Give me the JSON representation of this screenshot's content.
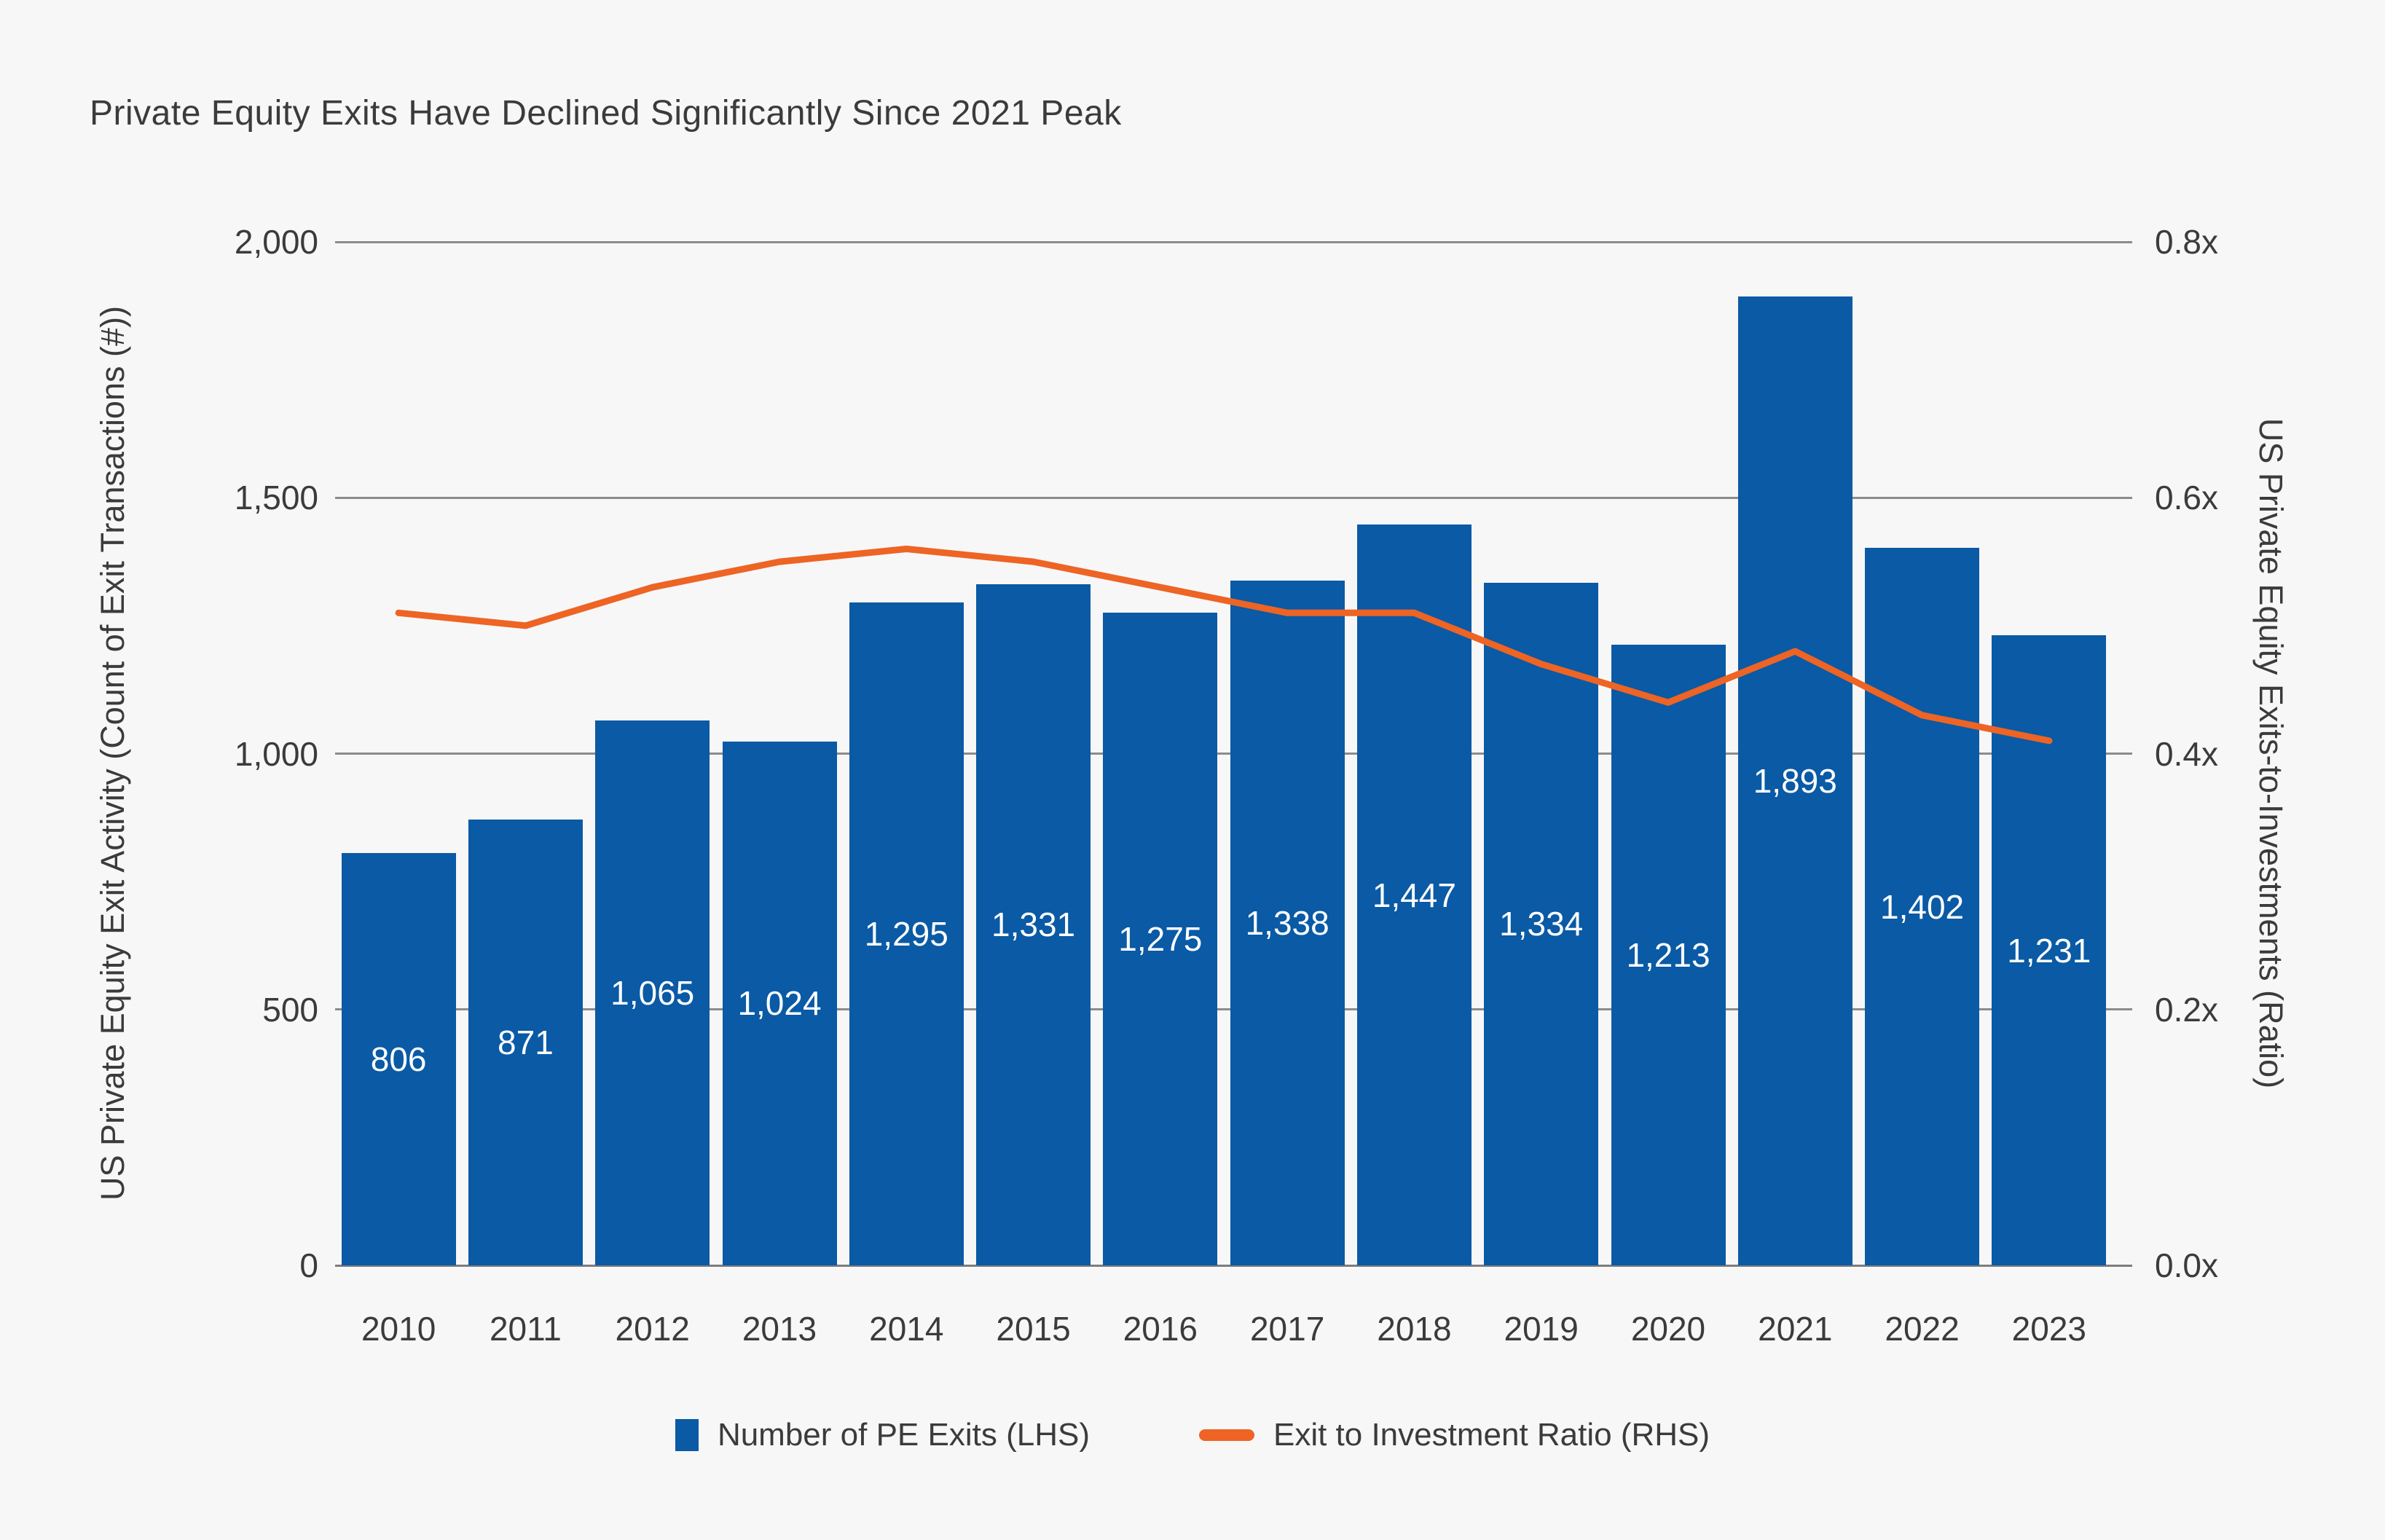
{
  "title": "Private Equity Exits Have Declined Significantly Since 2021 Peak",
  "chart_data": {
    "type": "bar",
    "subtype": "bar-line-combo",
    "categories": [
      "2010",
      "2011",
      "2012",
      "2013",
      "2014",
      "2015",
      "2016",
      "2017",
      "2018",
      "2019",
      "2020",
      "2021",
      "2022",
      "2023"
    ],
    "series": [
      {
        "name": "Number of PE Exits (LHS)",
        "type": "bar",
        "axis": "left",
        "color": "#0a5aa5",
        "values": [
          806,
          871,
          1065,
          1024,
          1295,
          1331,
          1275,
          1338,
          1447,
          1334,
          1213,
          1893,
          1402,
          1231
        ],
        "value_labels": [
          "806",
          "871",
          "1,065",
          "1,024",
          "1,295",
          "1,331",
          "1,275",
          "1,338",
          "1,447",
          "1,334",
          "1,213",
          "1,893",
          "1,402",
          "1,231"
        ]
      },
      {
        "name": "Exit to Investment Ratio (RHS)",
        "type": "line",
        "axis": "right",
        "color": "#ed6425",
        "values": [
          0.51,
          0.5,
          0.53,
          0.55,
          0.56,
          0.55,
          0.53,
          0.51,
          0.51,
          0.47,
          0.44,
          0.48,
          0.43,
          0.41
        ]
      }
    ],
    "title": "Private Equity Exits Have Declined Significantly Since 2021 Peak",
    "xlabel": "",
    "left_axis": {
      "label": "US Private Equity Exit Activity (Count of Exit Transactions (#))",
      "ticks": [
        "2,000",
        "1,500",
        "1,000",
        "500",
        "0"
      ],
      "min": 0,
      "max": 2000
    },
    "right_axis": {
      "label": "US Private Equity Exits-to-Investments (Ratio)",
      "ticks": [
        "0.8x",
        "0.6x",
        "0.4x",
        "0.2x",
        "0.0x"
      ],
      "min": 0,
      "max": 0.8
    },
    "grid": true,
    "legend_position": "bottom"
  },
  "legend": {
    "items": [
      {
        "label": "Number of PE Exits (LHS)",
        "swatch": "square",
        "color": "#0a5aa5"
      },
      {
        "label": "Exit to Investment Ratio (RHS)",
        "swatch": "line",
        "color": "#ed6425"
      }
    ]
  },
  "colors": {
    "background": "#f7f7f7",
    "bar": "#0a5aa5",
    "line": "#ed6425",
    "gridline": "#8c8c8c",
    "text": "#3b3b3b",
    "bar_label_text": "#ffffff"
  }
}
